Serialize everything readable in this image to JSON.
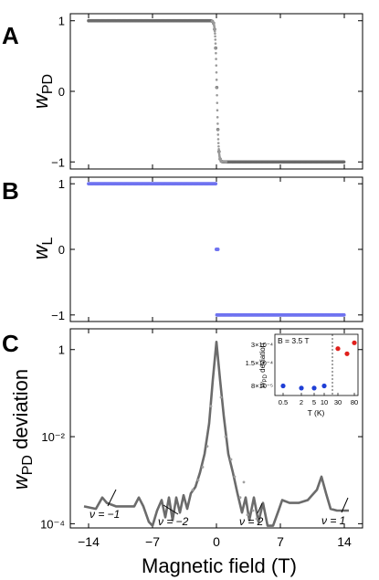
{
  "panels": [
    {
      "letter": "A",
      "ylabel_main": "w",
      "ylabel_sub": "PD",
      "ylabel_suffix": ""
    },
    {
      "letter": "B",
      "ylabel_main": "w",
      "ylabel_sub": "L",
      "ylabel_suffix": ""
    },
    {
      "letter": "C",
      "ylabel_main": "w",
      "ylabel_sub": "PD",
      "ylabel_suffix": " deviation"
    }
  ],
  "xlabel": "Magnetic field (T)",
  "xticks": [
    "−14",
    "−7",
    "0",
    "7",
    "14"
  ],
  "annotations": [
    "ν = −1",
    "ν = −2",
    "ν = 2",
    "ν = 1"
  ],
  "inset": {
    "label": "B = 3.5 T",
    "xlabel": "T (K)",
    "ylabel_main": "w",
    "ylabel_sub": "PD",
    "ylabel_suffix": " deviation",
    "yticks": [
      "3×10⁻⁴",
      "1.5×10⁻⁴",
      "8×10⁻⁵"
    ],
    "xticks": [
      "0.5",
      "2",
      "5",
      "10",
      "30",
      "80"
    ]
  },
  "colors": {
    "gray": "#6b6b6b",
    "blue": "#6f73f0",
    "inset_blue": "#1f3fd6",
    "inset_red": "#e0201c"
  },
  "chart_data": [
    {
      "type": "scatter",
      "panel": "A",
      "xlim": [
        -16,
        16
      ],
      "ylim": [
        -1.1,
        1.1
      ],
      "yticks": [
        "−1",
        "0",
        "1"
      ],
      "series": [
        {
          "x_range": [
            -14,
            14
          ],
          "description_free": true,
          "points": [
            [
              -14,
              1.0
            ],
            [
              -1,
              1.0
            ],
            [
              -0.3,
              0.98
            ],
            [
              -0.1,
              0.8
            ],
            [
              0,
              0.2
            ],
            [
              0.1,
              -0.5
            ],
            [
              0.3,
              -0.9
            ],
            [
              0.8,
              -0.98
            ],
            [
              1.5,
              -1.0
            ],
            [
              14,
              -1.0
            ]
          ]
        }
      ]
    },
    {
      "type": "scatter",
      "panel": "B",
      "xlim": [
        -16,
        16
      ],
      "ylim": [
        -1.1,
        1.1
      ],
      "yticks": [
        "−1",
        "0",
        "1"
      ],
      "series": [
        {
          "points": [
            [
              -14,
              1.0
            ],
            [
              -0.1,
              1.0
            ],
            [
              0,
              0.0
            ],
            [
              0.1,
              -1.0
            ],
            [
              14,
              -1.0
            ]
          ]
        }
      ]
    },
    {
      "type": "line",
      "panel": "C",
      "yscale": "log",
      "xlim": [
        -16,
        16
      ],
      "ylim": [
        8e-05,
        3
      ],
      "yticks": [
        "10⁻⁴",
        "10⁻²",
        "1"
      ],
      "series": [
        {
          "points": [
            [
              -14.5,
              0.00025
            ],
            [
              -13.2,
              0.00022
            ],
            [
              -12.5,
              0.0004
            ],
            [
              -12,
              0.0003
            ],
            [
              -11,
              0.00025
            ],
            [
              -9,
              0.00025
            ],
            [
              -8.5,
              0.0004
            ],
            [
              -8,
              0.00025
            ],
            [
              -7.4,
              0.00011
            ],
            [
              -7,
              9e-05
            ],
            [
              -6.5,
              0.0002
            ],
            [
              -6,
              0.00035
            ],
            [
              -5.6,
              0.00014
            ],
            [
              -5.2,
              0.0004
            ],
            [
              -4.8,
              0.00012
            ],
            [
              -4.4,
              0.0004
            ],
            [
              -4,
              0.00018
            ],
            [
              -3.6,
              0.00045
            ],
            [
              -3.2,
              0.00022
            ],
            [
              -2.8,
              0.0005
            ],
            [
              -2.3,
              0.0007
            ],
            [
              -1.8,
              0.0015
            ],
            [
              -1.3,
              0.004
            ],
            [
              -0.8,
              0.02
            ],
            [
              -0.4,
              0.2
            ],
            [
              0,
              1.5
            ],
            [
              0.4,
              0.2
            ],
            [
              0.8,
              0.03
            ],
            [
              1.3,
              0.004
            ],
            [
              1.8,
              0.0015
            ],
            [
              2.3,
              0.0005
            ],
            [
              2.8,
              0.00018
            ],
            [
              3.2,
              0.0004
            ],
            [
              3.6,
              0.00012
            ],
            [
              4.1,
              0.0004
            ],
            [
              4.6,
              0.00011
            ],
            [
              5.1,
              0.0003
            ],
            [
              5.6,
              9e-05
            ],
            [
              6.2,
              9e-05
            ],
            [
              6.8,
              0.0002
            ],
            [
              7.2,
              0.00035
            ],
            [
              8,
              0.0003
            ],
            [
              9,
              0.0003
            ],
            [
              10,
              0.00035
            ],
            [
              11,
              0.0006
            ],
            [
              11.5,
              0.0012
            ],
            [
              12,
              0.0005
            ],
            [
              12.5,
              0.00022
            ],
            [
              13.2,
              0.0002
            ],
            [
              14.5,
              0.0002
            ]
          ]
        }
      ]
    },
    {
      "type": "scatter",
      "panel": "C-inset",
      "yscale": "log",
      "x_categories": [
        "0.5",
        "2",
        "5",
        "10",
        "30",
        "80"
      ],
      "series": [
        {
          "color": "blue",
          "points": [
            [
              "0.5",
              9e-05
            ],
            [
              "2",
              8.5e-05
            ],
            [
              "5",
              8.5e-05
            ],
            [
              "10",
              9e-05
            ]
          ]
        },
        {
          "color": "red",
          "points": [
            [
              "30",
              0.00024
            ],
            [
              "50",
              0.00021
            ],
            [
              "80",
              0.00028
            ]
          ]
        }
      ]
    }
  ]
}
